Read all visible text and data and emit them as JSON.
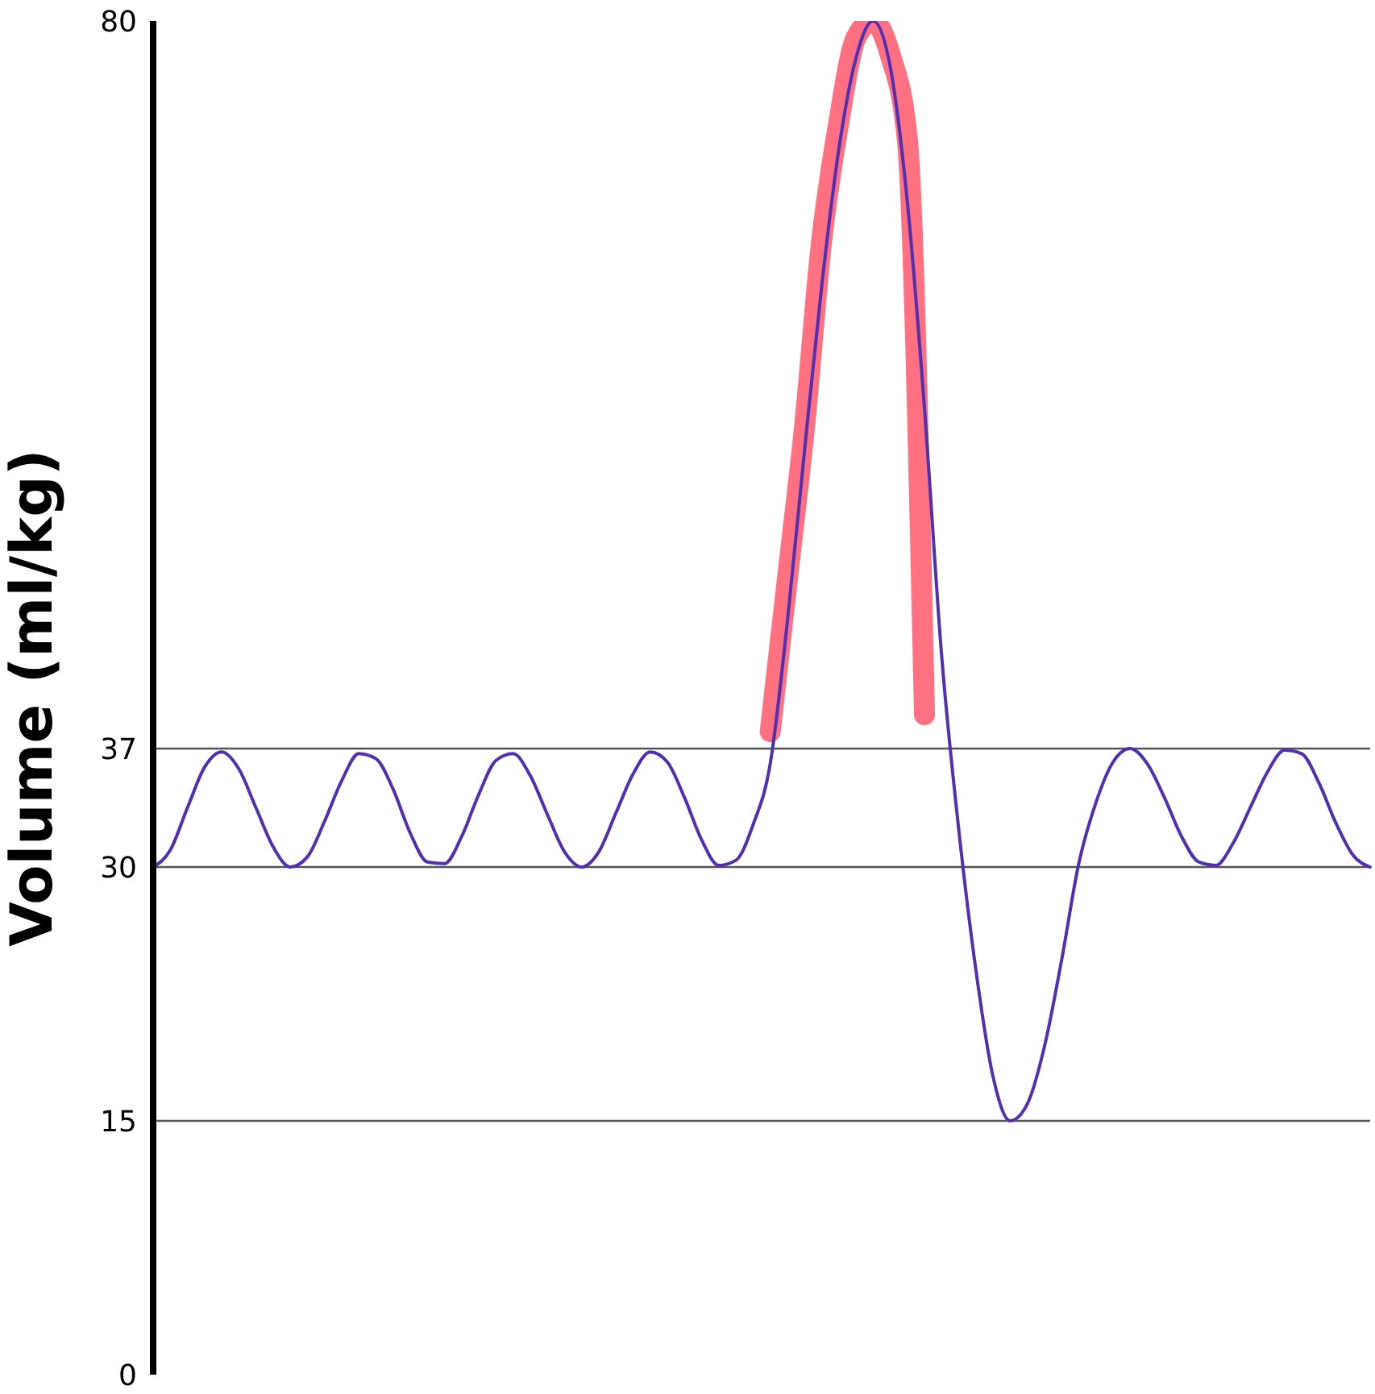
{
  "chart_data": {
    "type": "line",
    "ylabel": "Volume (ml/kg)",
    "categories": [
      null,
      null,
      null,
      null,
      null,
      null,
      null,
      null,
      null,
      null,
      null,
      null,
      null,
      null,
      null,
      null,
      null,
      null,
      null,
      null,
      null,
      null,
      null,
      null,
      null,
      null,
      null,
      null,
      null,
      null,
      null,
      null,
      null,
      null,
      null,
      null,
      null,
      null,
      null,
      null,
      null,
      null,
      null,
      null,
      null,
      null,
      null,
      null,
      null,
      null,
      null,
      null,
      null,
      null,
      null,
      null,
      null,
      null,
      null,
      null,
      null,
      null,
      null,
      null,
      null,
      null,
      null,
      null,
      null,
      null,
      null,
      null
    ],
    "series": [
      {
        "color": "#5030b0",
        "values": [
          30,
          31,
          33.5,
          35.9,
          36.8,
          35.8,
          33.5,
          31.2,
          30,
          30.6,
          32.7,
          35.1,
          36.7,
          36.4,
          34.6,
          32,
          30.3,
          30.2,
          31.8,
          34.3,
          36.3,
          36.7,
          35.4,
          33.1,
          30.9,
          30,
          30.9,
          33.2,
          35.5,
          36.8,
          36.2,
          34.1,
          31.6,
          30.1,
          30.4,
          32.5,
          36.1,
          44.5,
          54.6,
          64.3,
          72.4,
          77.8,
          80,
          77.3,
          69.3,
          57.1,
          42.5,
          32.2,
          23.9,
          17.6,
          15,
          16,
          19.4,
          24.5,
          30.2,
          33.8,
          36.2,
          37,
          36.1,
          34.1,
          31.8,
          30.3,
          30.1,
          31.4,
          33.5,
          35.6,
          36.9,
          36.7,
          35,
          32.6,
          30.7,
          30
        ]
      },
      {
        "color": "#ff7080",
        "values": [
          null,
          null,
          null,
          null,
          null,
          null,
          null,
          null,
          null,
          null,
          null,
          null,
          null,
          null,
          null,
          null,
          null,
          null,
          null,
          null,
          null,
          null,
          null,
          null,
          null,
          null,
          null,
          null,
          null,
          null,
          null,
          null,
          null,
          null,
          null,
          null,
          38,
          47,
          56,
          67,
          74,
          79,
          80,
          78,
          73,
          39,
          null,
          null,
          null,
          null,
          null,
          null,
          null,
          null,
          null,
          null,
          null,
          null,
          null,
          null,
          null,
          null,
          null,
          null,
          null,
          null,
          null,
          null,
          null,
          null,
          null,
          null
        ]
      }
    ],
    "ylim": [
      0,
      80
    ],
    "yticks": [
      0,
      15,
      30,
      37,
      80
    ],
    "grid": "y",
    "tick_labels": "y",
    "marker": "none",
    "line_style": "solid"
  }
}
